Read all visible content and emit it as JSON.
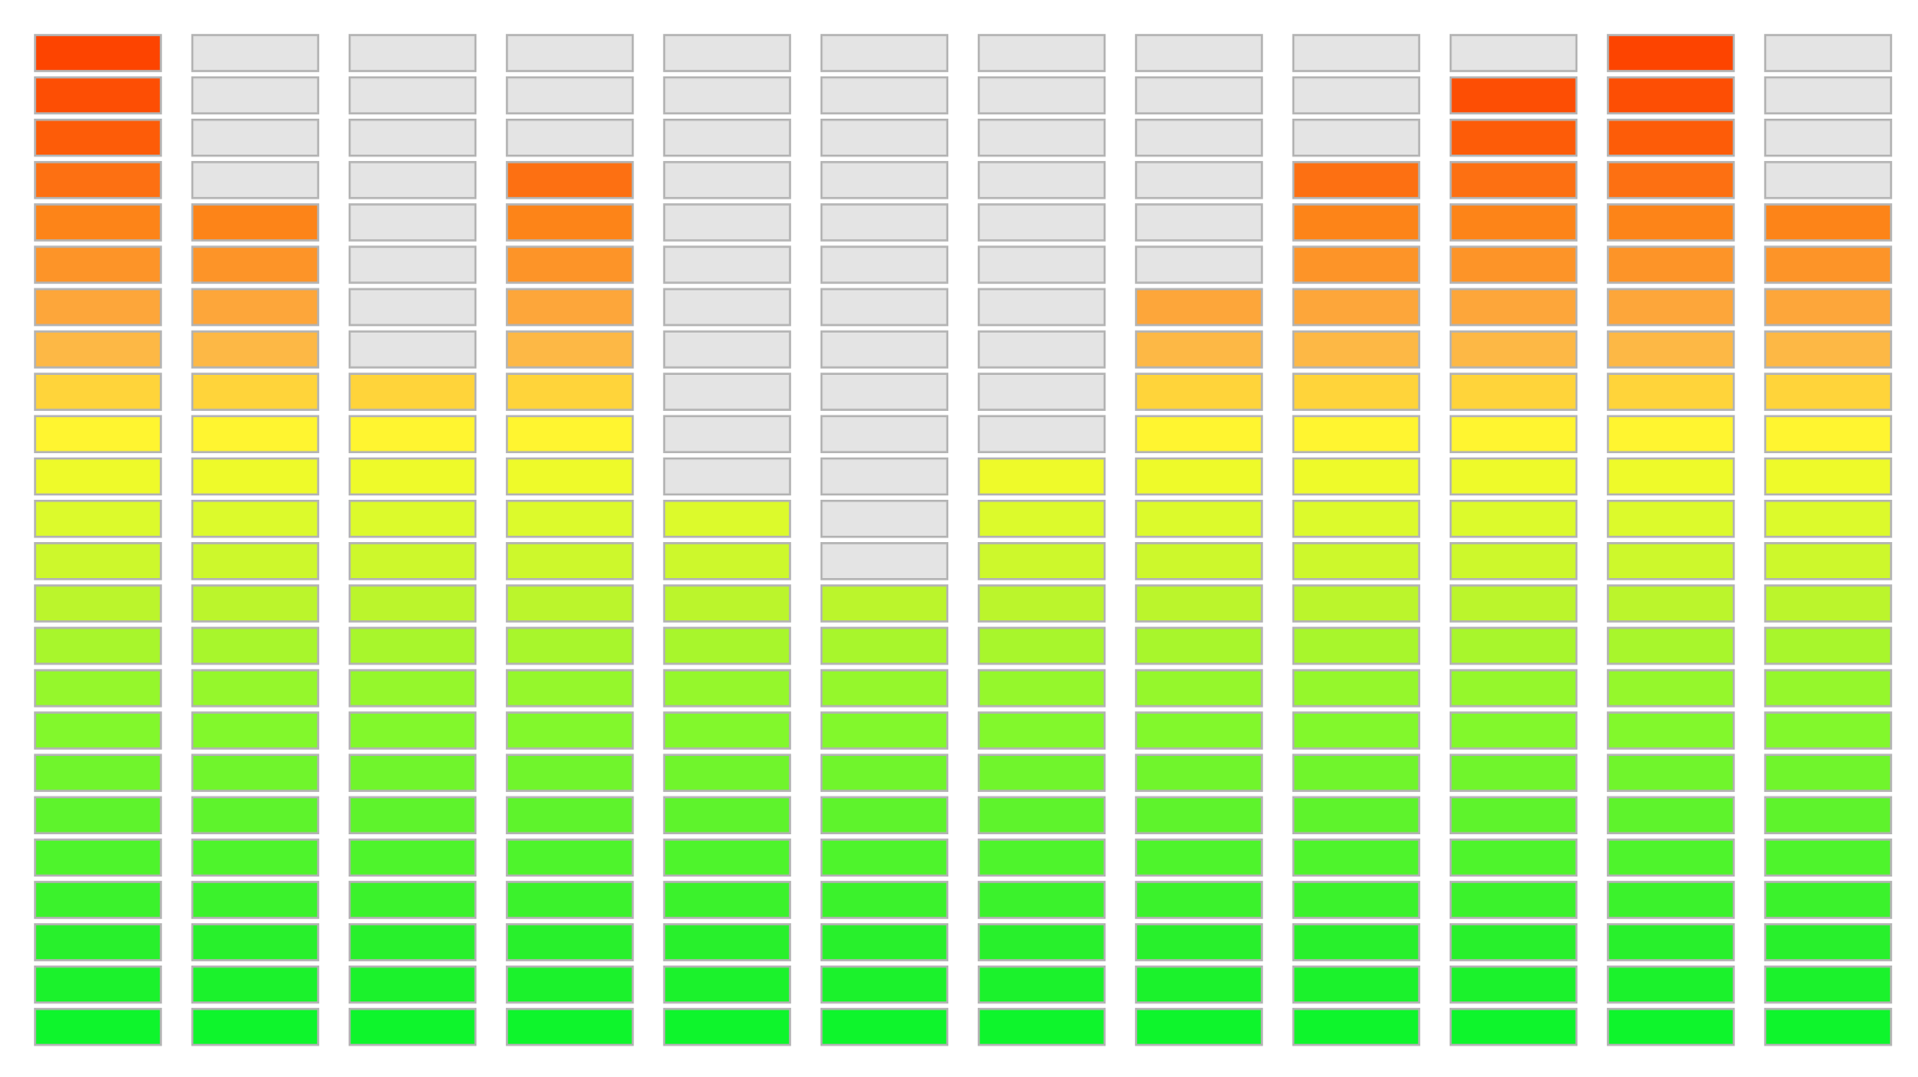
{
  "chart_data": {
    "type": "bar",
    "style": "segmented-led-equalizer",
    "segments_per_bar": 24,
    "bar_count": 12,
    "values": [
      24,
      20,
      16,
      21,
      13,
      11,
      14,
      18,
      21,
      23,
      24,
      20
    ],
    "ylim": [
      0,
      24
    ],
    "grid": false,
    "legend": "none",
    "colors": {
      "unlit_fill": "#e4e4e4",
      "segment_border": "#b4b4b4",
      "level_colors": [
        "#0ef52c",
        "#1bf22c",
        "#28f02c",
        "#3bf22c",
        "#4ef42c",
        "#5ef32c",
        "#70f52c",
        "#82f82c",
        "#95f72c",
        "#a8f62c",
        "#bbf52c",
        "#cdf82c",
        "#dcfa2c",
        "#eefa2a",
        "#fff530",
        "#ffd43a",
        "#fdb845",
        "#fda63a",
        "#fd9428",
        "#fd8418",
        "#fd7012",
        "#fd5c08",
        "#fd4e04",
        "#fd4400"
      ]
    }
  }
}
